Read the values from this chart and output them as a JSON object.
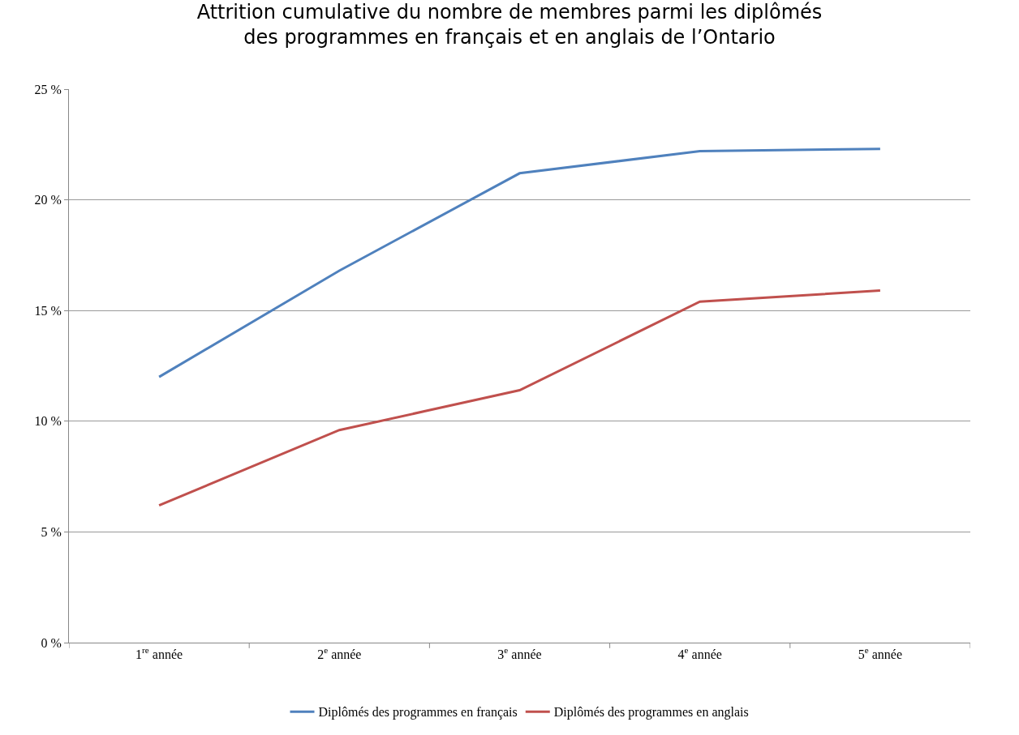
{
  "chart_data": {
    "type": "line",
    "title": "Attrition cumulative du nombre de membres parmi les diplômés\ndes programmes en français et en anglais de l’Ontario",
    "categories": [
      "1$^{re}$ année",
      "2$^{e}$ année",
      "3$^{e}$ année",
      "4$^{e}$ année",
      "5$^{e}$ année"
    ],
    "series": [
      {
        "name": "Diplômés des programmes en français",
        "color": "#4f81bd",
        "values": [
          12.0,
          16.8,
          21.2,
          22.2,
          22.3
        ]
      },
      {
        "name": "Diplômés des programmes en anglais",
        "color": "#c0504d",
        "values": [
          6.2,
          9.6,
          11.4,
          15.4,
          15.9
        ]
      }
    ],
    "ylim": [
      0,
      25
    ],
    "yticks": [
      {
        "value": 0,
        "label": "0 %"
      },
      {
        "value": 5,
        "label": "5 %"
      },
      {
        "value": 10,
        "label": "10 %"
      },
      {
        "value": 15,
        "label": "15 %"
      },
      {
        "value": 20,
        "label": "20 %"
      },
      {
        "value": 25,
        "label": "25 %"
      }
    ],
    "grid": "y",
    "legend": "bottom",
    "marker": "none",
    "line_style": "solid"
  }
}
